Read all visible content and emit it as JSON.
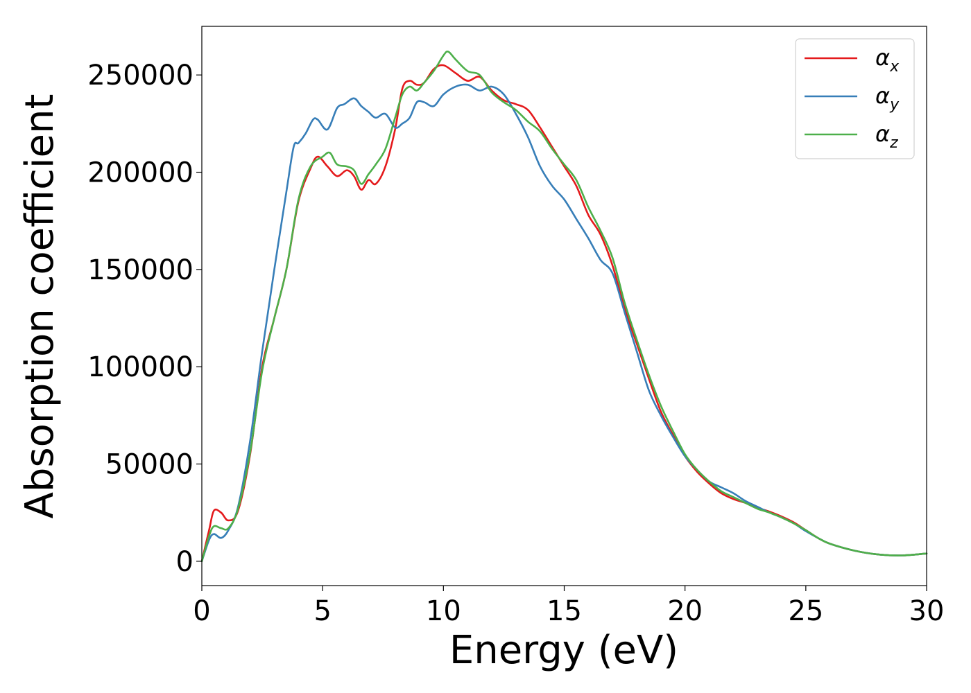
{
  "chart_data": {
    "type": "line",
    "xlabel": "Energy (eV)",
    "ylabel": "Absorption coefficient",
    "xlim": [
      0,
      30
    ],
    "ylim": [
      -12500,
      275000
    ],
    "xticks": [
      "0",
      "5",
      "10",
      "15",
      "20",
      "25",
      "30"
    ],
    "yticks": [
      "0",
      "50000",
      "100000",
      "150000",
      "200000",
      "250000"
    ],
    "legend_position": "top-right",
    "grid": false,
    "series": [
      {
        "name": "α_x",
        "color": "#e41a1c",
        "x": [
          0,
          0.3,
          0.5,
          0.8,
          1.1,
          1.5,
          2.0,
          2.5,
          3.0,
          3.5,
          4.0,
          4.5,
          4.8,
          5.2,
          5.6,
          6.0,
          6.3,
          6.6,
          6.9,
          7.2,
          7.6,
          8.0,
          8.3,
          8.6,
          8.9,
          9.2,
          9.6,
          10.0,
          10.5,
          11.0,
          11.5,
          12.0,
          12.5,
          13.0,
          13.5,
          14.0,
          14.5,
          15.0,
          15.5,
          16.0,
          16.5,
          17.0,
          17.5,
          18.0,
          18.5,
          19.0,
          19.5,
          20.0,
          20.5,
          21.0,
          21.5,
          22.0,
          22.5,
          23.0,
          23.5,
          24.0,
          24.5,
          25.0,
          25.5,
          26.0,
          27.0,
          28.0,
          29.0,
          30.0
        ],
        "y": [
          0,
          16000,
          26000,
          25000,
          21000,
          26000,
          55000,
          100000,
          125000,
          150000,
          185000,
          202000,
          208000,
          203000,
          198000,
          201000,
          198000,
          191000,
          196000,
          194000,
          203000,
          222000,
          243000,
          247000,
          245000,
          246000,
          253000,
          255000,
          251000,
          247000,
          249000,
          242000,
          237000,
          235000,
          232000,
          223000,
          213000,
          203000,
          193000,
          178000,
          168000,
          152000,
          130000,
          112000,
          94000,
          77000,
          65000,
          54000,
          46000,
          40000,
          35000,
          32000,
          30000,
          27500,
          25500,
          23000,
          20000,
          16000,
          12000,
          9000,
          5500,
          3500,
          3000,
          4000
        ]
      },
      {
        "name": "α_y",
        "color": "#377eb8",
        "x": [
          0,
          0.3,
          0.5,
          0.8,
          1.1,
          1.5,
          2.0,
          2.5,
          3.0,
          3.5,
          3.8,
          4.0,
          4.3,
          4.6,
          4.8,
          5.2,
          5.6,
          5.9,
          6.3,
          6.6,
          6.9,
          7.2,
          7.6,
          8.0,
          8.3,
          8.6,
          8.9,
          9.2,
          9.6,
          10.0,
          10.5,
          11.0,
          11.5,
          12.0,
          12.5,
          13.0,
          13.5,
          14.0,
          14.5,
          15.0,
          15.5,
          16.0,
          16.5,
          17.0,
          17.5,
          18.0,
          18.5,
          19.0,
          19.5,
          20.0,
          20.5,
          21.0,
          21.5,
          22.0,
          22.5,
          23.0,
          23.5,
          24.0,
          24.5,
          25.0,
          25.5,
          26.0,
          27.0,
          28.0,
          29.0,
          30.0
        ],
        "y": [
          0,
          11000,
          14000,
          12000,
          16000,
          28000,
          62000,
          108000,
          150000,
          190000,
          213000,
          215000,
          220000,
          227000,
          227000,
          222000,
          233000,
          235000,
          238000,
          234000,
          231000,
          228000,
          230000,
          223000,
          225000,
          228000,
          236000,
          236000,
          234000,
          240000,
          244000,
          245000,
          242000,
          244000,
          240000,
          230000,
          218000,
          203000,
          193000,
          186000,
          176000,
          166000,
          155000,
          148000,
          128000,
          108000,
          88000,
          75000,
          64000,
          54000,
          47000,
          41000,
          38000,
          35000,
          31000,
          28000,
          25000,
          22500,
          19500,
          15500,
          12000,
          9000,
          5500,
          3500,
          3000,
          4000
        ]
      },
      {
        "name": "α_z",
        "color": "#4daf4a",
        "x": [
          0,
          0.3,
          0.5,
          0.8,
          1.1,
          1.5,
          2.0,
          2.5,
          3.0,
          3.5,
          4.0,
          4.5,
          5.0,
          5.3,
          5.6,
          6.0,
          6.3,
          6.6,
          6.9,
          7.2,
          7.6,
          8.0,
          8.3,
          8.6,
          8.9,
          9.2,
          9.6,
          10.0,
          10.2,
          10.5,
          11.0,
          11.5,
          12.0,
          12.5,
          13.0,
          13.5,
          14.0,
          14.5,
          15.0,
          15.5,
          16.0,
          16.5,
          17.0,
          17.5,
          18.0,
          18.5,
          19.0,
          19.5,
          20.0,
          20.5,
          21.0,
          21.5,
          22.0,
          22.5,
          23.0,
          23.5,
          24.0,
          24.5,
          25.0,
          25.5,
          26.0,
          27.0,
          28.0,
          29.0,
          30.0
        ],
        "y": [
          0,
          13000,
          18000,
          17000,
          17000,
          27000,
          56000,
          98000,
          125000,
          150000,
          186000,
          203000,
          208000,
          210000,
          204000,
          203000,
          201000,
          194000,
          199000,
          204000,
          212000,
          228000,
          240000,
          244000,
          242000,
          246000,
          252000,
          260000,
          262000,
          258000,
          252000,
          250000,
          241000,
          236000,
          232000,
          226000,
          221000,
          212000,
          204000,
          196000,
          182000,
          170000,
          156000,
          133000,
          114000,
          96000,
          80000,
          67000,
          55000,
          47000,
          41000,
          36000,
          33000,
          30000,
          27000,
          25000,
          22500,
          19500,
          16000,
          12000,
          9000,
          5500,
          3500,
          3000,
          4000
        ]
      }
    ]
  }
}
